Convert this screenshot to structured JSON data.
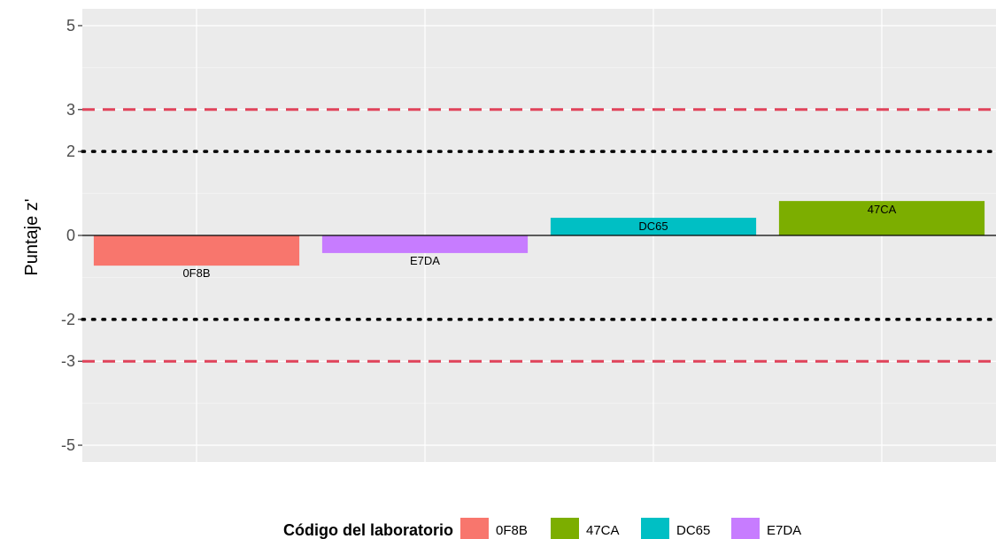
{
  "chart_data": {
    "type": "bar",
    "categories": [
      "0F8B",
      "E7DA",
      "DC65",
      "47CA"
    ],
    "values": [
      -0.72,
      -0.42,
      0.42,
      0.82
    ],
    "colors": {
      "0F8B": "#F8766D",
      "47CA": "#7CAE00",
      "DC65": "#00BFC4",
      "E7DA": "#C77CFF"
    },
    "ylabel": "Puntaje z'",
    "xlabel": "",
    "title": "",
    "ylim": [
      -5.4,
      5.4
    ],
    "yticks": [
      -5,
      -3,
      -2,
      0,
      2,
      3,
      5
    ],
    "ytick_labels": [
      "-5",
      "-3",
      "-2",
      "0",
      "2",
      "3",
      "5"
    ],
    "reference_lines": [
      {
        "value": 3,
        "style": "dashed",
        "color": "#E0435A"
      },
      {
        "value": -3,
        "style": "dashed",
        "color": "#E0435A"
      },
      {
        "value": 2,
        "style": "dotted",
        "color": "#000000"
      },
      {
        "value": -2,
        "style": "dotted",
        "color": "#000000"
      }
    ],
    "grid": true,
    "panel_background": "#EBEBEB",
    "legend": {
      "title": "Código del laboratorio",
      "position": "bottom",
      "entries": [
        "0F8B",
        "47CA",
        "DC65",
        "E7DA"
      ]
    }
  }
}
